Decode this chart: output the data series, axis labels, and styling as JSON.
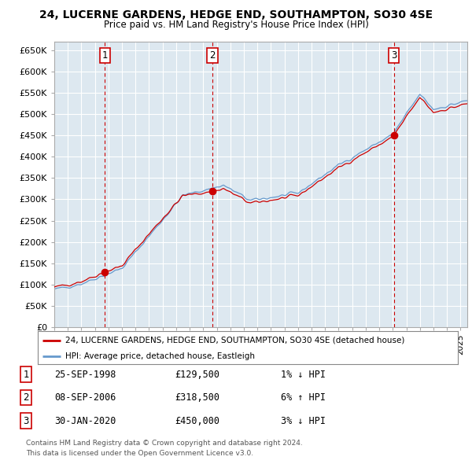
{
  "title": "24, LUCERNE GARDENS, HEDGE END, SOUTHAMPTON, SO30 4SE",
  "subtitle": "Price paid vs. HM Land Registry's House Price Index (HPI)",
  "ylabel_ticks": [
    "£0",
    "£50K",
    "£100K",
    "£150K",
    "£200K",
    "£250K",
    "£300K",
    "£350K",
    "£400K",
    "£450K",
    "£500K",
    "£550K",
    "£600K",
    "£650K"
  ],
  "ytick_values": [
    0,
    50000,
    100000,
    150000,
    200000,
    250000,
    300000,
    350000,
    400000,
    450000,
    500000,
    550000,
    600000,
    650000
  ],
  "ylim": [
    0,
    670000
  ],
  "transactions": [
    {
      "date_num": 1998.73,
      "price": 129500,
      "label": "1"
    },
    {
      "date_num": 2006.68,
      "price": 318500,
      "label": "2"
    },
    {
      "date_num": 2020.08,
      "price": 450000,
      "label": "3"
    }
  ],
  "legend_entries": [
    {
      "label": "24, LUCERNE GARDENS, HEDGE END, SOUTHAMPTON, SO30 4SE (detached house)",
      "color": "#cc0000"
    },
    {
      "label": "HPI: Average price, detached house, Eastleigh",
      "color": "#6699cc"
    }
  ],
  "table_rows": [
    {
      "num": "1",
      "date": "25-SEP-1998",
      "price": "£129,500",
      "hpi": "1% ↓ HPI"
    },
    {
      "num": "2",
      "date": "08-SEP-2006",
      "price": "£318,500",
      "hpi": "6% ↑ HPI"
    },
    {
      "num": "3",
      "date": "30-JAN-2020",
      "price": "£450,000",
      "hpi": "3% ↓ HPI"
    }
  ],
  "footer": [
    "Contains HM Land Registry data © Crown copyright and database right 2024.",
    "This data is licensed under the Open Government Licence v3.0."
  ],
  "plot_bg_color": "#dde8f0",
  "grid_color": "#ffffff",
  "xmin": 1995,
  "xmax": 2025.5
}
